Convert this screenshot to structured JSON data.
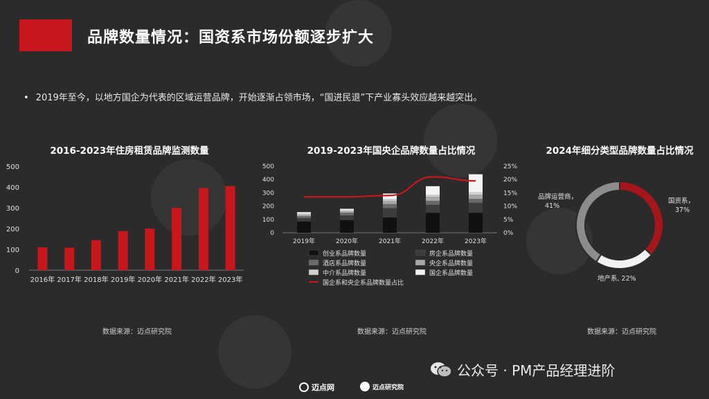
{
  "header": {
    "title": "品牌数量情况：国资系市场份额逐步扩大"
  },
  "bullet": {
    "marker": "•",
    "text": "2019年至今，以地方国企为代表的区域运营品牌，开始逐渐占领市场，“国进民退”下产业寡头效应越来越突出。"
  },
  "colors": {
    "accent": "#c8161d",
    "background": "#2b2b2b"
  },
  "source_text": "数据来源：迈点研究院",
  "footer": {
    "brand1": "迈点网",
    "brand2": "迈点研究院",
    "wechat": "公众号 · PM产品经理进阶"
  },
  "chart_data": [
    {
      "type": "bar",
      "title": "2016-2023年住房租赁品牌监测数量",
      "categories": [
        "2016年",
        "2017年",
        "2018年",
        "2019年",
        "2020年",
        "2021年",
        "2022年",
        "2023年"
      ],
      "values": [
        110,
        108,
        145,
        188,
        200,
        300,
        395,
        405
      ],
      "ylim": [
        0,
        500
      ],
      "yticks": [
        "0",
        "100",
        "200",
        "300",
        "400",
        "500"
      ],
      "grid": false,
      "color": "#c8161d"
    },
    {
      "type": "bar",
      "stacked": true,
      "title": "2019-2023年国央企品牌数量占比情况",
      "categories": [
        "2019年",
        "2020年",
        "2021年",
        "2022年",
        "2023年"
      ],
      "ylim": [
        0,
        500
      ],
      "yticks": [
        "0",
        "100",
        "200",
        "300",
        "400",
        "500"
      ],
      "y2lim": [
        0,
        25
      ],
      "y2ticks": [
        "0%",
        "5%",
        "10%",
        "15%",
        "20%",
        "25%"
      ],
      "series": [
        {
          "name": "创业系品牌数量",
          "color": "#111111",
          "values": [
            85,
            95,
            115,
            150,
            150
          ]
        },
        {
          "name": "房企系品牌数量",
          "color": "#3c3c3c",
          "values": [
            25,
            35,
            70,
            60,
            75
          ]
        },
        {
          "name": "酒店系品牌数量",
          "color": "#6a6a6a",
          "values": [
            15,
            20,
            30,
            30,
            30
          ]
        },
        {
          "name": "央企系品牌数量",
          "color": "#a8a8a8",
          "values": [
            10,
            10,
            25,
            30,
            30
          ]
        },
        {
          "name": "中介系品牌数量",
          "color": "#d0d0d0",
          "values": [
            10,
            10,
            15,
            15,
            20
          ]
        },
        {
          "name": "国企系品牌数量",
          "color": "#f4f4f4",
          "values": [
            10,
            10,
            40,
            65,
            135
          ]
        }
      ],
      "line": {
        "name": "国企系和央企系品牌数量占比",
        "color": "#c8161d",
        "values": [
          13.5,
          13.5,
          14.0,
          21.0,
          19.5
        ]
      }
    },
    {
      "type": "pie",
      "donut": true,
      "title": "2024年细分类型品牌数量占比情况",
      "slices": [
        {
          "label": "国资系",
          "pct": "37%",
          "value": 37,
          "color": "#a5161c"
        },
        {
          "label": "地产系",
          "pct": "22%",
          "value": 22,
          "color": "#f2f2f2"
        },
        {
          "label": "品牌运营商",
          "pct": "41%",
          "value": 41,
          "color": "#8c8c8c"
        }
      ]
    }
  ]
}
